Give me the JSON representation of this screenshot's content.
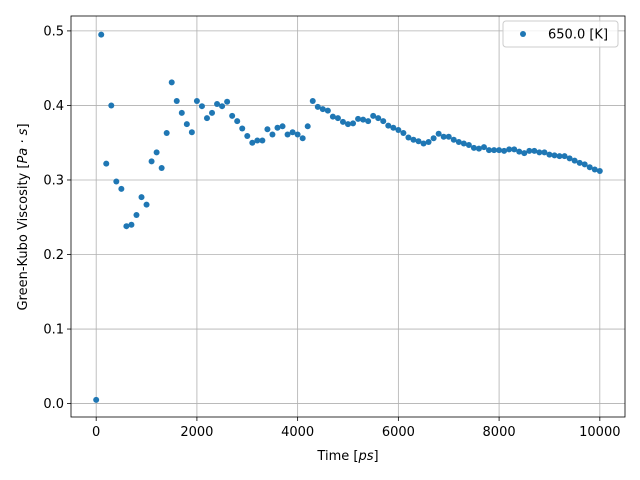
{
  "chart_data": {
    "type": "scatter",
    "xlabel": "Time [",
    "xlabel_unit": "ps",
    "xlabel_end": "]",
    "ylabel": "Green-Kubo Viscosity [",
    "ylabel_unit": "Pa · s",
    "ylabel_end": "]",
    "xlim": [
      -500,
      10500
    ],
    "ylim": [
      -0.018,
      0.52
    ],
    "xticks": [
      0,
      2000,
      4000,
      6000,
      8000,
      10000
    ],
    "yticks": [
      0.0,
      0.1,
      0.2,
      0.3,
      0.4,
      0.5
    ],
    "xtick_labels": [
      "0",
      "2000",
      "4000",
      "6000",
      "8000",
      "10000"
    ],
    "ytick_labels": [
      "0.0",
      "0.1",
      "0.2",
      "0.3",
      "0.4",
      "0.5"
    ],
    "grid": true,
    "legend_position": "top-right",
    "series": [
      {
        "name": "650.0 [K]",
        "color": "#1f77b4",
        "marker": "circle",
        "x": [
          0,
          100,
          200,
          300,
          400,
          500,
          600,
          700,
          800,
          900,
          1000,
          1100,
          1200,
          1300,
          1400,
          1500,
          1600,
          1700,
          1800,
          1900,
          2000,
          2100,
          2200,
          2300,
          2400,
          2500,
          2600,
          2700,
          2800,
          2900,
          3000,
          3100,
          3200,
          3300,
          3400,
          3500,
          3600,
          3700,
          3800,
          3900,
          4000,
          4100,
          4200,
          4300,
          4400,
          4500,
          4600,
          4700,
          4800,
          4900,
          5000,
          5100,
          5200,
          5300,
          5400,
          5500,
          5600,
          5700,
          5800,
          5900,
          6000,
          6100,
          6200,
          6300,
          6400,
          6500,
          6600,
          6700,
          6800,
          6900,
          7000,
          7100,
          7200,
          7300,
          7400,
          7500,
          7600,
          7700,
          7800,
          7900,
          8000,
          8100,
          8200,
          8300,
          8400,
          8500,
          8600,
          8700,
          8800,
          8900,
          9000,
          9100,
          9200,
          9300,
          9400,
          9500,
          9600,
          9700,
          9800,
          9900,
          10000
        ],
        "y": [
          0.005,
          0.495,
          0.322,
          0.4,
          0.298,
          0.288,
          0.238,
          0.24,
          0.253,
          0.277,
          0.267,
          0.325,
          0.337,
          0.316,
          0.363,
          0.431,
          0.406,
          0.39,
          0.375,
          0.364,
          0.406,
          0.399,
          0.383,
          0.39,
          0.402,
          0.399,
          0.405,
          0.386,
          0.379,
          0.369,
          0.359,
          0.35,
          0.353,
          0.353,
          0.368,
          0.361,
          0.37,
          0.372,
          0.361,
          0.364,
          0.361,
          0.356,
          0.372,
          0.406,
          0.398,
          0.395,
          0.393,
          0.385,
          0.383,
          0.378,
          0.375,
          0.376,
          0.382,
          0.381,
          0.379,
          0.386,
          0.383,
          0.379,
          0.373,
          0.37,
          0.367,
          0.363,
          0.357,
          0.354,
          0.352,
          0.349,
          0.351,
          0.356,
          0.362,
          0.358,
          0.358,
          0.354,
          0.351,
          0.349,
          0.347,
          0.343,
          0.342,
          0.344,
          0.34,
          0.34,
          0.34,
          0.339,
          0.341,
          0.341,
          0.338,
          0.336,
          0.339,
          0.339,
          0.337,
          0.337,
          0.334,
          0.333,
          0.332,
          0.332,
          0.329,
          0.326,
          0.323,
          0.321,
          0.317,
          0.314,
          0.312
        ]
      }
    ]
  }
}
